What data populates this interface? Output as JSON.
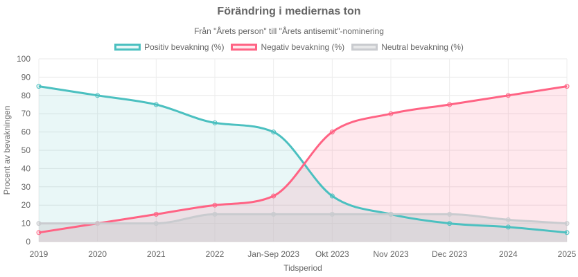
{
  "chart_data": {
    "type": "line",
    "title": "Förändring i mediernas ton",
    "subtitle": "Från \"Årets person\" till \"Årets antisemit\"-nominering",
    "xlabel": "Tidsperiod",
    "ylabel": "Procent av bevakningen",
    "ylim": [
      0,
      100
    ],
    "yticks": [
      "0",
      "10",
      "20",
      "30",
      "40",
      "50",
      "60",
      "70",
      "80",
      "90",
      "100"
    ],
    "grid": true,
    "legend_position": "top",
    "categories": [
      "2019",
      "2020",
      "2021",
      "2022",
      "Jan-Sep 2023",
      "Okt 2023",
      "Nov 2023",
      "Dec 2023",
      "2024",
      "2025"
    ],
    "series": [
      {
        "name": "Positiv bevakning (%)",
        "color": "#4bc0c0",
        "fill": "rgba(75,192,192,0.12)",
        "values": [
          85,
          80,
          75,
          65,
          60,
          25,
          15,
          10,
          8,
          5
        ]
      },
      {
        "name": "Negativ bevakning (%)",
        "color": "#ff6384",
        "fill": "rgba(255,99,132,0.15)",
        "values": [
          5,
          10,
          15,
          20,
          25,
          60,
          70,
          75,
          80,
          85
        ]
      },
      {
        "name": "Neutral bevakning (%)",
        "color": "#c9cbcf",
        "fill": "rgba(201,203,207,0.45)",
        "values": [
          10,
          10,
          10,
          15,
          15,
          15,
          15,
          15,
          12,
          10
        ]
      }
    ]
  }
}
